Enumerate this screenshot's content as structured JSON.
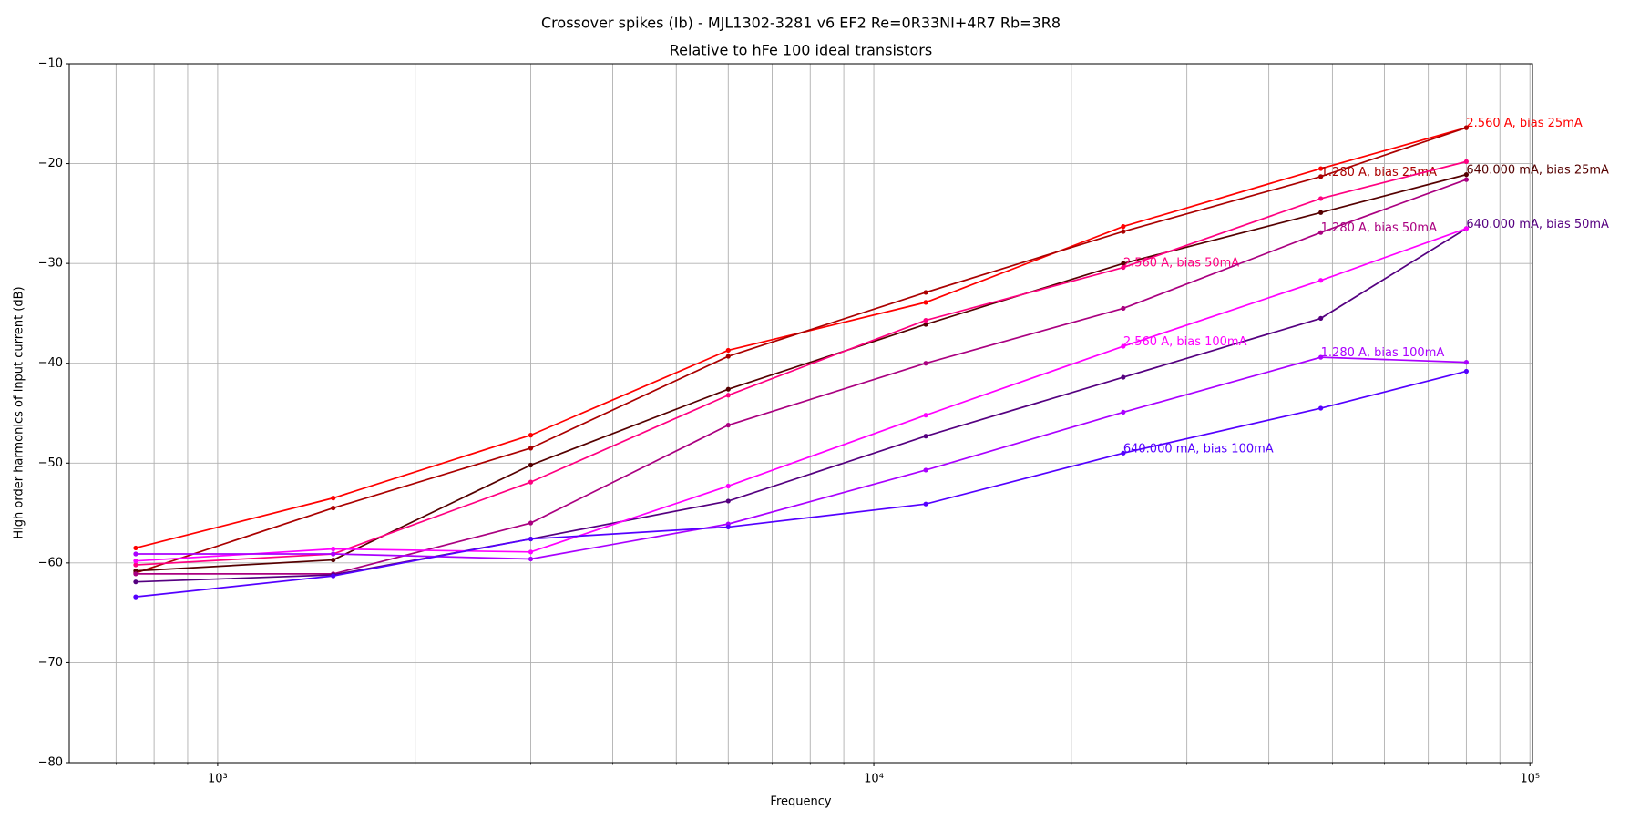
{
  "chart_data": {
    "type": "line",
    "title": "Crossover spikes (Ib) - MJL1302-3281 v6 EF2 Re=0R33NI+4R7 Rb=3R8",
    "subtitle": "Relative to hFe 100 ideal transistors",
    "xlabel": "Frequency",
    "ylabel": "High order harmonics of input current (dB)",
    "xscale": "log",
    "grid": true,
    "x": [
      750,
      1500,
      3000,
      6000,
      12000,
      24000,
      48000,
      80000
    ],
    "xlim": [
      594,
      100900
    ],
    "xticks": [
      {
        "value": 1000,
        "label": "10³"
      },
      {
        "value": 10000,
        "label": "10⁴"
      },
      {
        "value": 100000,
        "label": "10⁵"
      }
    ],
    "xminorticks": [
      700,
      800,
      900,
      2000,
      3000,
      4000,
      5000,
      6000,
      7000,
      8000,
      9000,
      20000,
      30000,
      40000,
      50000,
      60000,
      70000,
      80000,
      90000
    ],
    "ylim": [
      -80,
      -10
    ],
    "yticks": [
      {
        "value": -80,
        "label": "−80"
      },
      {
        "value": -70,
        "label": "−70"
      },
      {
        "value": -60,
        "label": "−60"
      },
      {
        "value": -50,
        "label": "−50"
      },
      {
        "value": -40,
        "label": "−40"
      },
      {
        "value": -30,
        "label": "−30"
      },
      {
        "value": -20,
        "label": "−20"
      },
      {
        "value": -10,
        "label": "−10"
      }
    ],
    "series": [
      {
        "name": "2.560 A, bias 25mA",
        "color": "#ff0000",
        "label_point": 7,
        "values": [
          -58.5,
          -53.5,
          -47.2,
          -38.7,
          -33.9,
          -26.3,
          -20.5,
          -16.4
        ]
      },
      {
        "name": "1.280 A, bias 25mA",
        "color": "#aa0000",
        "label_point": 6,
        "values": [
          -61.0,
          -54.5,
          -48.5,
          -39.3,
          -32.9,
          -26.8,
          -21.3,
          -16.4
        ]
      },
      {
        "name": "640.000 mA, bias 25mA",
        "color": "#550000",
        "label_point": 7,
        "values": [
          -60.8,
          -59.7,
          -50.2,
          -42.6,
          -36.1,
          -30.0,
          -24.9,
          -21.1
        ]
      },
      {
        "name": "2.560 A, bias 50mA",
        "color": "#ff0080",
        "label_point": 5,
        "values": [
          -60.2,
          -59.1,
          -51.9,
          -43.2,
          -35.7,
          -30.4,
          -23.5,
          -19.8
        ]
      },
      {
        "name": "1.280 A, bias 50mA",
        "color": "#aa0080",
        "label_point": 6,
        "values": [
          -61.1,
          -61.1,
          -56.0,
          -46.2,
          -40.0,
          -34.5,
          -26.9,
          -21.6
        ]
      },
      {
        "name": "640.000 mA, bias 50mA",
        "color": "#550080",
        "label_point": 7,
        "values": [
          -61.9,
          -61.2,
          -57.6,
          -53.8,
          -47.3,
          -41.4,
          -35.5,
          -26.5
        ]
      },
      {
        "name": "2.560 A, bias 100mA",
        "color": "#ff00ff",
        "label_point": 5,
        "values": [
          -59.8,
          -58.6,
          -58.9,
          -52.3,
          -45.2,
          -38.3,
          -31.7,
          -26.5
        ]
      },
      {
        "name": "1.280 A, bias 100mA",
        "color": "#aa00ff",
        "label_point": 6,
        "values": [
          -59.1,
          -59.1,
          -59.6,
          -56.1,
          -50.7,
          -44.9,
          -39.4,
          -39.9
        ]
      },
      {
        "name": "640.000 mA, bias 100mA",
        "color": "#5500ff",
        "label_point": 5,
        "values": [
          -63.4,
          -61.3,
          -57.6,
          -56.4,
          -54.1,
          -49.0,
          -44.5,
          -40.8
        ]
      }
    ]
  }
}
